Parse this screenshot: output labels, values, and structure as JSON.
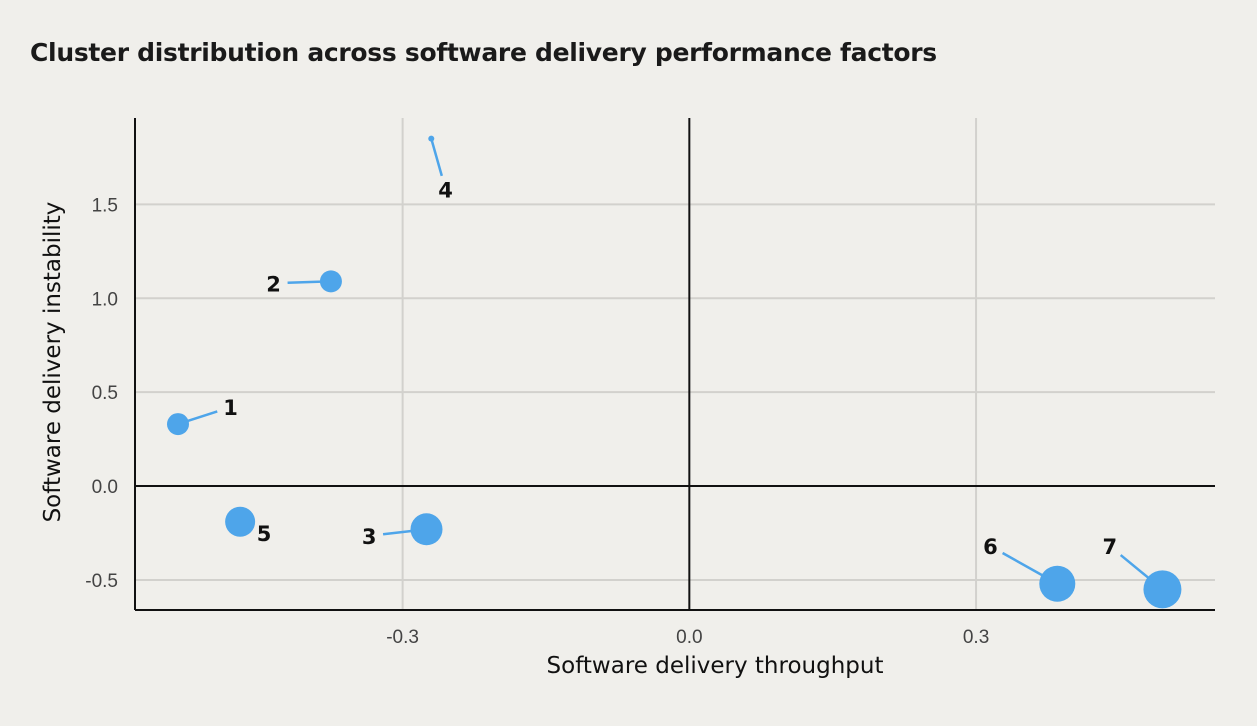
{
  "chart_data": {
    "type": "scatter",
    "title": "Cluster distribution across software delivery performance factors",
    "xlabel": "Software delivery throughput",
    "ylabel": "Software delivery instability",
    "xlim": [
      -0.58,
      0.55
    ],
    "ylim": [
      -0.66,
      1.96
    ],
    "xticks": [
      -0.3,
      0.0,
      0.3
    ],
    "xtick_labels": [
      "-0.3",
      "0.0",
      "0.3"
    ],
    "yticks": [
      -0.5,
      0.0,
      0.5,
      1.0,
      1.5
    ],
    "ytick_labels": [
      "-0.5",
      "0.0",
      "0.5",
      "1.0",
      "1.5"
    ],
    "grid": true,
    "reference_lines": {
      "x": 0.0,
      "y": 0.0
    },
    "marker_color": "#4ea5ea",
    "points": [
      {
        "label": "1",
        "x": -0.535,
        "y": 0.33,
        "size": 11,
        "label_x": -0.48,
        "label_y": 0.42
      },
      {
        "label": "2",
        "x": -0.375,
        "y": 1.09,
        "size": 11,
        "label_x": -0.435,
        "label_y": 1.08
      },
      {
        "label": "3",
        "x": -0.275,
        "y": -0.23,
        "size": 16,
        "label_x": -0.335,
        "label_y": -0.265
      },
      {
        "label": "4",
        "x": -0.27,
        "y": 1.85,
        "size": 3,
        "label_x": -0.255,
        "label_y": 1.58
      },
      {
        "label": "5",
        "x": -0.47,
        "y": -0.19,
        "size": 15,
        "label_x": -0.445,
        "label_y": -0.25
      },
      {
        "label": "6",
        "x": 0.385,
        "y": -0.52,
        "size": 18,
        "label_x": 0.315,
        "label_y": -0.32
      },
      {
        "label": "7",
        "x": 0.495,
        "y": -0.55,
        "size": 19,
        "label_x": 0.44,
        "label_y": -0.32
      }
    ]
  }
}
